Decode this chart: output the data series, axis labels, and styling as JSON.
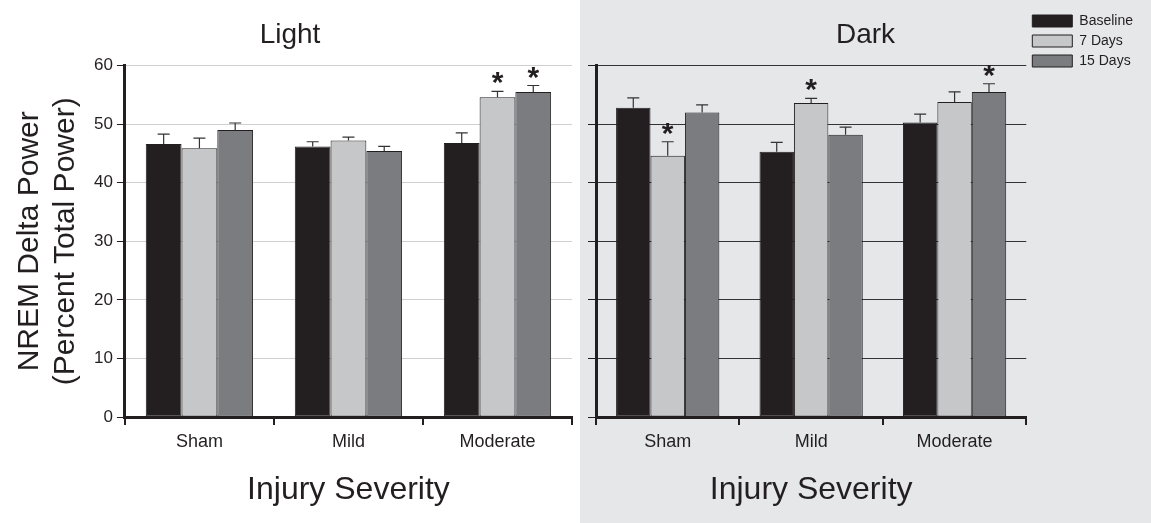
{
  "chart_data": [
    {
      "type": "bar",
      "title": "Light",
      "xlabel": "Injury Severity",
      "ylabel": "NREM Delta Power\n(Percent Total Power)",
      "categories": [
        "Sham",
        "Mild",
        "Moderate"
      ],
      "series": [
        {
          "color": "#231f20",
          "values": [
            46.6,
            46.2,
            46.8
          ],
          "errors": [
            1.7,
            0.8,
            1.7
          ]
        },
        {
          "color": "#c6c7c9",
          "values": [
            45.9,
            47.2,
            54.6
          ],
          "errors": [
            1.7,
            0.6,
            1.0
          ],
          "value_labels": [
            null,
            null,
            "*"
          ]
        },
        {
          "color": "#7b7c80",
          "values": [
            49.0,
            45.4,
            55.5
          ],
          "errors": [
            1.2,
            0.8,
            1.1
          ],
          "value_labels": [
            null,
            null,
            "*"
          ]
        }
      ],
      "ylim": [
        0,
        60
      ],
      "yticks": [
        0,
        10,
        20,
        30,
        40,
        50,
        60
      ],
      "grid": "y",
      "legend": false
    },
    {
      "type": "bar",
      "title": "Dark",
      "xlabel": "Injury Severity",
      "categories": [
        "Sham",
        "Mild",
        "Moderate"
      ],
      "series": [
        {
          "name": "Baseline",
          "color": "#231f20",
          "values": [
            52.8,
            45.3,
            50.3
          ],
          "errors": [
            1.7,
            1.6,
            1.4
          ]
        },
        {
          "name": "7 Days",
          "color": "#c6c7c9",
          "values": [
            44.6,
            53.6,
            53.8
          ],
          "errors": [
            2.4,
            0.8,
            1.7
          ],
          "value_labels": [
            "*",
            "*",
            null
          ]
        },
        {
          "name": "15 Days",
          "color": "#7b7c80",
          "values": [
            52.0,
            48.2,
            55.5
          ],
          "errors": [
            1.3,
            1.3,
            1.4
          ],
          "value_labels": [
            null,
            null,
            "*"
          ]
        }
      ],
      "ylim": [
        0,
        60
      ],
      "yticks": [
        0,
        10,
        20,
        30,
        40,
        50,
        60
      ],
      "grid": "y",
      "legend": "top right",
      "tick_labels": "x"
    }
  ]
}
